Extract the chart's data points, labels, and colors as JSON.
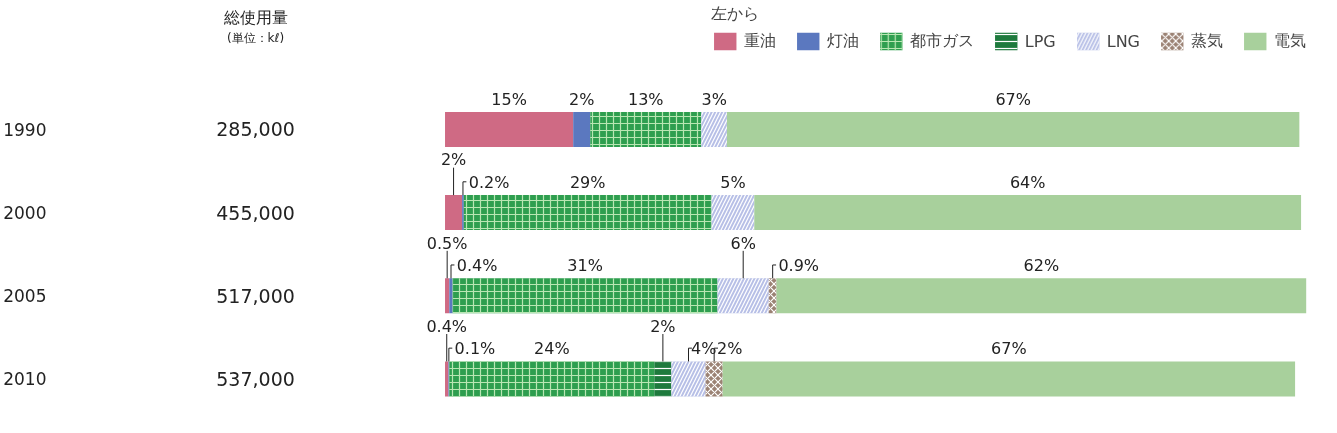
{
  "chart_data": {
    "type": "bar",
    "orientation": "horizontal",
    "stacked": true,
    "legend": "top",
    "legend_title": "左から",
    "tick_labels": "y",
    "categories": [
      "1990",
      "2000",
      "2005",
      "2010"
    ],
    "annotations": [
      "総使用量",
      "(単位：kℓ)",
      "285,000",
      "455,000",
      "517,000",
      "537,000"
    ],
    "series": [
      {
        "name": "重油",
        "color": "#cf6a84",
        "values": [
          15,
          2,
          0.5,
          0.4
        ],
        "value_labels": [
          "15%",
          "2%",
          "0.5%",
          "0.4%"
        ]
      },
      {
        "name": "灯油",
        "color": "#5b78bf",
        "values": [
          2,
          0.2,
          0.4,
          0.1
        ],
        "value_labels": [
          "2%",
          "0.2%",
          "0.4%",
          "0.1%"
        ]
      },
      {
        "name": "都市ガス",
        "color": "#2e9e4f",
        "values": [
          13,
          29,
          31,
          24
        ],
        "value_labels": [
          "13%",
          "29%",
          "31%",
          "24%"
        ]
      },
      {
        "name": "LPG",
        "color": "#1e7a3d",
        "values": [
          null,
          null,
          null,
          2
        ],
        "value_labels": [
          null,
          null,
          null,
          "2%"
        ]
      },
      {
        "name": "LNG",
        "color": "#b7bfe6",
        "values": [
          3,
          5,
          6,
          4
        ],
        "value_labels": [
          "3%",
          "5%",
          "6%",
          "4%"
        ]
      },
      {
        "name": "蒸気",
        "color": "#9b8274",
        "values": [
          null,
          null,
          0.9,
          2
        ],
        "value_labels": [
          null,
          null,
          "0.9%",
          "2%"
        ]
      },
      {
        "name": "電気",
        "color": "#a8d09c",
        "values": [
          67,
          64,
          62,
          67
        ],
        "value_labels": [
          "67%",
          "64%",
          "62%",
          "67%"
        ]
      }
    ]
  }
}
